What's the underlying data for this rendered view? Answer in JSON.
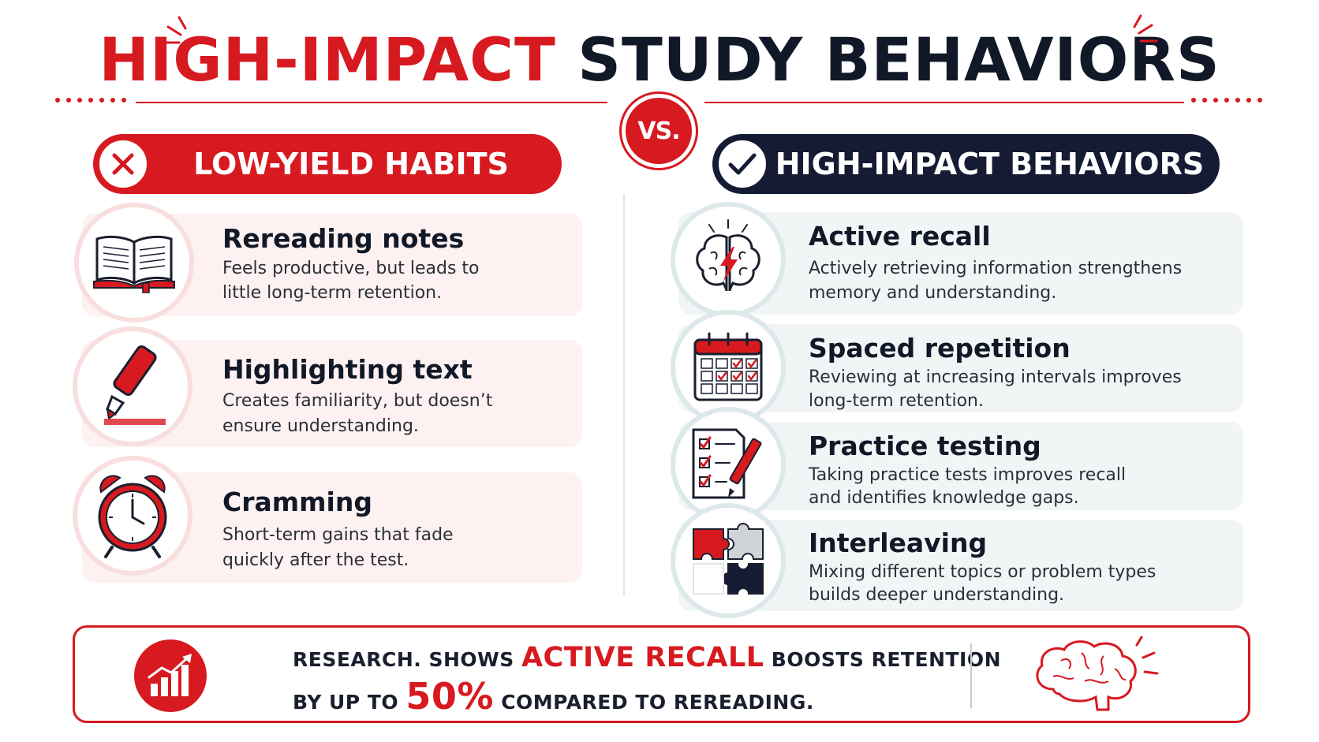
{
  "title": {
    "part_red": "HIGH-IMPACT",
    "part_dark": "STUDY BEHAVIORS"
  },
  "vs_label": "VS.",
  "left": {
    "banner": "LOW-YIELD HABITS",
    "items": [
      {
        "icon": "open-book-icon",
        "title": "Rereading notes",
        "desc1": "Feels productive, but leads to",
        "desc2": "little long-term retention."
      },
      {
        "icon": "highlighter-icon",
        "title": "Highlighting text",
        "desc1": "Creates familiarity, but doesn’t",
        "desc2": "ensure understanding."
      },
      {
        "icon": "alarm-clock-icon",
        "title": "Cramming",
        "desc1": "Short-term gains that fade",
        "desc2": "quickly after the test."
      }
    ]
  },
  "right": {
    "banner": "HIGH-IMPACT BEHAVIORS",
    "items": [
      {
        "icon": "brain-lightning-icon",
        "title": "Active recall",
        "desc1": "Actively retrieving information strengthens",
        "desc2": "memory and understanding."
      },
      {
        "icon": "calendar-icon",
        "title": "Spaced repetition",
        "desc1": "Reviewing at increasing intervals improves",
        "desc2": "long-term retention."
      },
      {
        "icon": "checklist-pencil-icon",
        "title": "Practice testing",
        "desc1": "Taking practice tests improves recall",
        "desc2": "and identifies knowledge gaps."
      },
      {
        "icon": "puzzle-icon",
        "title": "Interleaving",
        "desc1": "Mixing different topics or problem types",
        "desc2": "builds deeper understanding."
      }
    ]
  },
  "footer": {
    "line1_a": "RESEARCH. SHOWS",
    "line1_hl": "ACTIVE RECALL",
    "line1_b": "BOOSTS RETENTION",
    "line2_a": "BY UP TO",
    "line2_hl": "50%",
    "line2_b": "COMPARED TO REREADING."
  },
  "colors": {
    "accent_red": "#d71920",
    "navy": "#141b33",
    "card_red": "#fdf1f1",
    "card_grey": "#f1f5f6"
  }
}
